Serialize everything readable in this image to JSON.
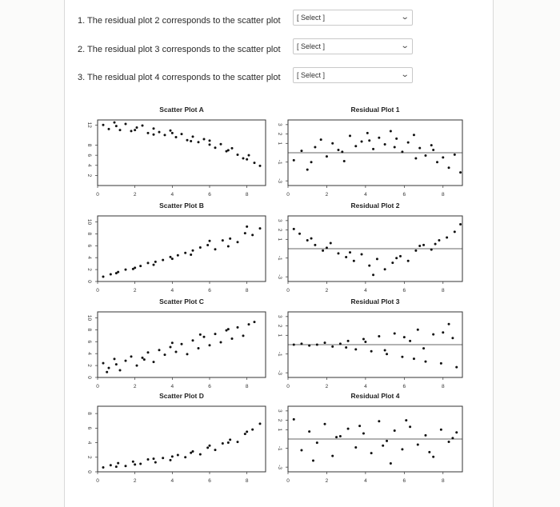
{
  "questions": [
    {
      "text": "1. The residual plot 2 corresponds to the scatter plot",
      "select": "[ Select ]"
    },
    {
      "text": "2. The residual plot 3 corresponds to the scatter plot",
      "select": "[ Select ]"
    },
    {
      "text": "3. The residual plot 4 corresponds to the scatter plot",
      "select": "[ Select ]"
    }
  ],
  "chart_data": [
    {
      "type": "scatter",
      "title": "Scatter Plot A",
      "xticks": [
        "0",
        "2",
        "4",
        "6",
        "8"
      ],
      "yticks": [
        "2",
        "4",
        "6",
        "8",
        "12"
      ],
      "xlim": [
        0,
        9
      ],
      "ylim": [
        0,
        13
      ],
      "x": [
        0.3,
        0.6,
        0.9,
        1.2,
        1.5,
        1.8,
        2.1,
        2.4,
        2.7,
        3.0,
        3.3,
        3.6,
        3.9,
        4.2,
        4.5,
        4.8,
        5.1,
        5.4,
        5.7,
        6.0,
        6.3,
        6.6,
        6.9,
        7.2,
        7.5,
        7.8,
        8.1,
        8.4,
        8.7,
        1.0,
        2.0,
        3.0,
        4.0,
        5.0,
        6.0,
        7.0,
        8.0
      ],
      "y": [
        12.0,
        11.2,
        12.5,
        11.0,
        12.2,
        10.8,
        11.5,
        11.9,
        10.4,
        11.3,
        10.6,
        10.0,
        10.9,
        9.6,
        10.2,
        9.0,
        9.7,
        8.6,
        9.2,
        8.1,
        7.5,
        8.2,
        6.8,
        7.4,
        6.1,
        5.4,
        6.0,
        4.5,
        3.9,
        11.8,
        11.0,
        10.1,
        10.4,
        8.8,
        8.9,
        7.0,
        5.2
      ]
    },
    {
      "type": "scatter",
      "title": "Residual Plot 1",
      "xticks": [
        "0",
        "2",
        "4",
        "6",
        "8"
      ],
      "yticks": [
        "-3",
        "-1",
        "1",
        "2",
        "3"
      ],
      "xlim": [
        0,
        9
      ],
      "ylim": [
        -3.5,
        3.5
      ],
      "x": [
        0.3,
        0.7,
        1.0,
        1.4,
        1.7,
        2.0,
        2.3,
        2.6,
        2.9,
        3.2,
        3.5,
        3.8,
        4.1,
        4.4,
        4.7,
        5.0,
        5.3,
        5.6,
        5.9,
        6.2,
        6.5,
        6.8,
        7.1,
        7.4,
        7.7,
        8.0,
        8.3,
        8.6,
        8.9,
        1.2,
        2.8,
        4.2,
        5.5,
        6.6,
        7.5
      ],
      "y": [
        -0.8,
        0.2,
        -1.8,
        0.6,
        1.4,
        -0.4,
        1.0,
        0.3,
        -0.9,
        1.8,
        0.7,
        1.2,
        2.1,
        0.4,
        1.6,
        0.9,
        2.3,
        1.5,
        0.1,
        1.1,
        1.9,
        0.5,
        -0.3,
        0.8,
        -1.0,
        -0.5,
        -1.6,
        -0.2,
        -2.1,
        -1.0,
        0.1,
        1.3,
        0.6,
        -0.6,
        0.3
      ]
    },
    {
      "type": "scatter",
      "title": "Scatter Plot B",
      "xticks": [
        "0",
        "2",
        "4",
        "6",
        "8"
      ],
      "yticks": [
        "0",
        "2",
        "4",
        "6",
        "8",
        "10"
      ],
      "xlim": [
        0,
        9
      ],
      "ylim": [
        0,
        11
      ],
      "x": [
        0.3,
        0.7,
        1.1,
        1.5,
        1.9,
        2.3,
        2.7,
        3.1,
        3.5,
        3.9,
        4.3,
        4.7,
        5.1,
        5.5,
        5.9,
        6.3,
        6.7,
        7.1,
        7.5,
        7.9,
        8.3,
        8.7,
        5.0,
        6.0,
        7.0,
        8.0,
        4.0,
        3.0,
        2.0,
        1.0
      ],
      "y": [
        0.8,
        1.2,
        1.6,
        2.0,
        2.1,
        2.6,
        3.1,
        3.3,
        3.6,
        4.1,
        4.4,
        4.8,
        5.2,
        5.7,
        6.1,
        5.4,
        6.9,
        7.2,
        6.6,
        8.1,
        7.8,
        8.9,
        4.5,
        6.8,
        5.9,
        9.2,
        3.8,
        2.8,
        2.3,
        1.4
      ]
    },
    {
      "type": "scatter",
      "title": "Residual Plot 2",
      "xticks": [
        "0",
        "2",
        "4",
        "6",
        "8"
      ],
      "yticks": [
        "-3",
        "-1",
        "1",
        "2",
        "3"
      ],
      "xlim": [
        0,
        9
      ],
      "ylim": [
        -3.5,
        3.5
      ],
      "x": [
        0.3,
        0.6,
        1.0,
        1.4,
        1.8,
        2.2,
        2.6,
        3.0,
        3.4,
        3.8,
        4.2,
        4.6,
        5.0,
        5.4,
        5.8,
        6.2,
        6.6,
        7.0,
        7.4,
        7.8,
        8.2,
        8.6,
        8.9,
        1.2,
        2.0,
        3.2,
        4.4,
        5.6,
        6.8,
        7.6
      ],
      "y": [
        2.1,
        1.6,
        0.9,
        0.4,
        -0.2,
        0.6,
        -0.5,
        -0.9,
        -1.3,
        -0.6,
        -1.8,
        -1.1,
        -2.2,
        -1.5,
        -0.8,
        -1.3,
        -0.2,
        0.4,
        -0.1,
        0.9,
        1.2,
        1.8,
        2.6,
        1.1,
        0.1,
        -0.4,
        -2.8,
        -1.0,
        0.3,
        0.5
      ]
    },
    {
      "type": "scatter",
      "title": "Scatter Plot C",
      "xticks": [
        "0",
        "2",
        "4",
        "6",
        "8"
      ],
      "yticks": [
        "0",
        "2",
        "4",
        "6",
        "8",
        "10"
      ],
      "xlim": [
        0,
        9
      ],
      "ylim": [
        0,
        11
      ],
      "x": [
        0.3,
        0.6,
        0.9,
        1.2,
        1.5,
        1.8,
        2.1,
        2.4,
        2.7,
        3.0,
        3.3,
        3.6,
        3.9,
        4.2,
        4.5,
        4.8,
        5.1,
        5.4,
        5.7,
        6.0,
        6.3,
        6.6,
        6.9,
        7.2,
        7.5,
        7.8,
        8.1,
        8.4,
        0.5,
        1.0,
        2.5,
        4.0,
        5.5,
        7.0
      ],
      "y": [
        2.4,
        1.6,
        3.1,
        1.2,
        2.8,
        3.5,
        2.0,
        3.3,
        4.2,
        2.6,
        4.6,
        3.8,
        5.1,
        4.3,
        5.6,
        3.9,
        6.2,
        4.9,
        6.8,
        5.4,
        7.3,
        5.9,
        7.9,
        6.5,
        8.4,
        7.0,
        8.9,
        9.3,
        0.9,
        2.2,
        3.0,
        5.8,
        7.2,
        8.1
      ]
    },
    {
      "type": "scatter",
      "title": "Residual Plot 3",
      "xticks": [
        "0",
        "2",
        "4",
        "6",
        "8"
      ],
      "yticks": [
        "-3",
        "-1",
        "1",
        "2",
        "3"
      ],
      "xlim": [
        0,
        9
      ],
      "ylim": [
        -3.5,
        3.5
      ],
      "x": [
        0.3,
        0.7,
        1.1,
        1.5,
        1.9,
        2.3,
        2.7,
        3.1,
        3.5,
        3.9,
        4.3,
        4.7,
        5.1,
        5.5,
        5.9,
        6.3,
        6.7,
        7.1,
        7.5,
        7.9,
        8.3,
        8.7,
        3.0,
        4.0,
        5.0,
        6.0,
        7.0,
        8.0,
        6.5,
        8.5
      ],
      "y": [
        0.0,
        0.1,
        -0.1,
        0.0,
        0.2,
        -0.2,
        0.1,
        0.4,
        -0.5,
        0.6,
        -0.7,
        0.9,
        -1.0,
        1.2,
        -1.3,
        0.4,
        1.6,
        -1.8,
        1.1,
        -2.0,
        2.2,
        -2.4,
        -0.3,
        0.3,
        -0.6,
        0.8,
        -0.4,
        1.3,
        -1.5,
        0.7
      ]
    },
    {
      "type": "scatter",
      "title": "Scatter Plot D",
      "xticks": [
        "0",
        "2",
        "4",
        "6",
        "8"
      ],
      "yticks": [
        "0",
        "2",
        "4",
        "6",
        "8"
      ],
      "xlim": [
        0,
        9
      ],
      "ylim": [
        0,
        9
      ],
      "x": [
        0.3,
        0.7,
        1.1,
        1.5,
        1.9,
        2.3,
        2.7,
        3.1,
        3.5,
        3.9,
        4.3,
        4.7,
        5.1,
        5.5,
        5.9,
        6.3,
        6.7,
        7.1,
        7.5,
        7.9,
        8.3,
        8.7,
        1.0,
        2.0,
        3.0,
        4.0,
        5.0,
        6.0,
        7.0,
        8.0
      ],
      "y": [
        0.6,
        0.9,
        1.2,
        0.8,
        1.4,
        1.1,
        1.7,
        1.3,
        1.9,
        1.6,
        2.3,
        2.0,
        2.8,
        2.4,
        3.3,
        3.0,
        3.9,
        4.4,
        4.1,
        5.2,
        5.8,
        6.6,
        0.7,
        1.0,
        1.8,
        2.1,
        2.6,
        3.6,
        4.0,
        5.5
      ]
    },
    {
      "type": "scatter",
      "title": "Residual Plot 4",
      "xticks": [
        "0",
        "2",
        "4",
        "6",
        "8"
      ],
      "yticks": [
        "-3",
        "-1",
        "1",
        "2",
        "3"
      ],
      "xlim": [
        0,
        9
      ],
      "ylim": [
        -3.5,
        3.5
      ],
      "x": [
        0.3,
        0.7,
        1.1,
        1.5,
        1.9,
        2.3,
        2.7,
        3.1,
        3.5,
        3.9,
        4.3,
        4.7,
        5.1,
        5.5,
        5.9,
        6.3,
        6.7,
        7.1,
        7.5,
        7.9,
        8.3,
        8.7,
        1.3,
        2.5,
        3.7,
        4.9,
        6.1,
        7.3,
        8.5,
        5.3
      ],
      "y": [
        2.1,
        -1.2,
        0.8,
        -0.4,
        1.6,
        -1.8,
        0.3,
        1.1,
        -0.9,
        0.6,
        -1.5,
        1.9,
        -0.2,
        0.9,
        -1.1,
        1.3,
        -0.6,
        0.4,
        -1.9,
        1.0,
        -0.3,
        0.7,
        -2.3,
        0.2,
        1.4,
        -0.7,
        2.0,
        -1.4,
        0.1,
        -2.6
      ]
    }
  ]
}
